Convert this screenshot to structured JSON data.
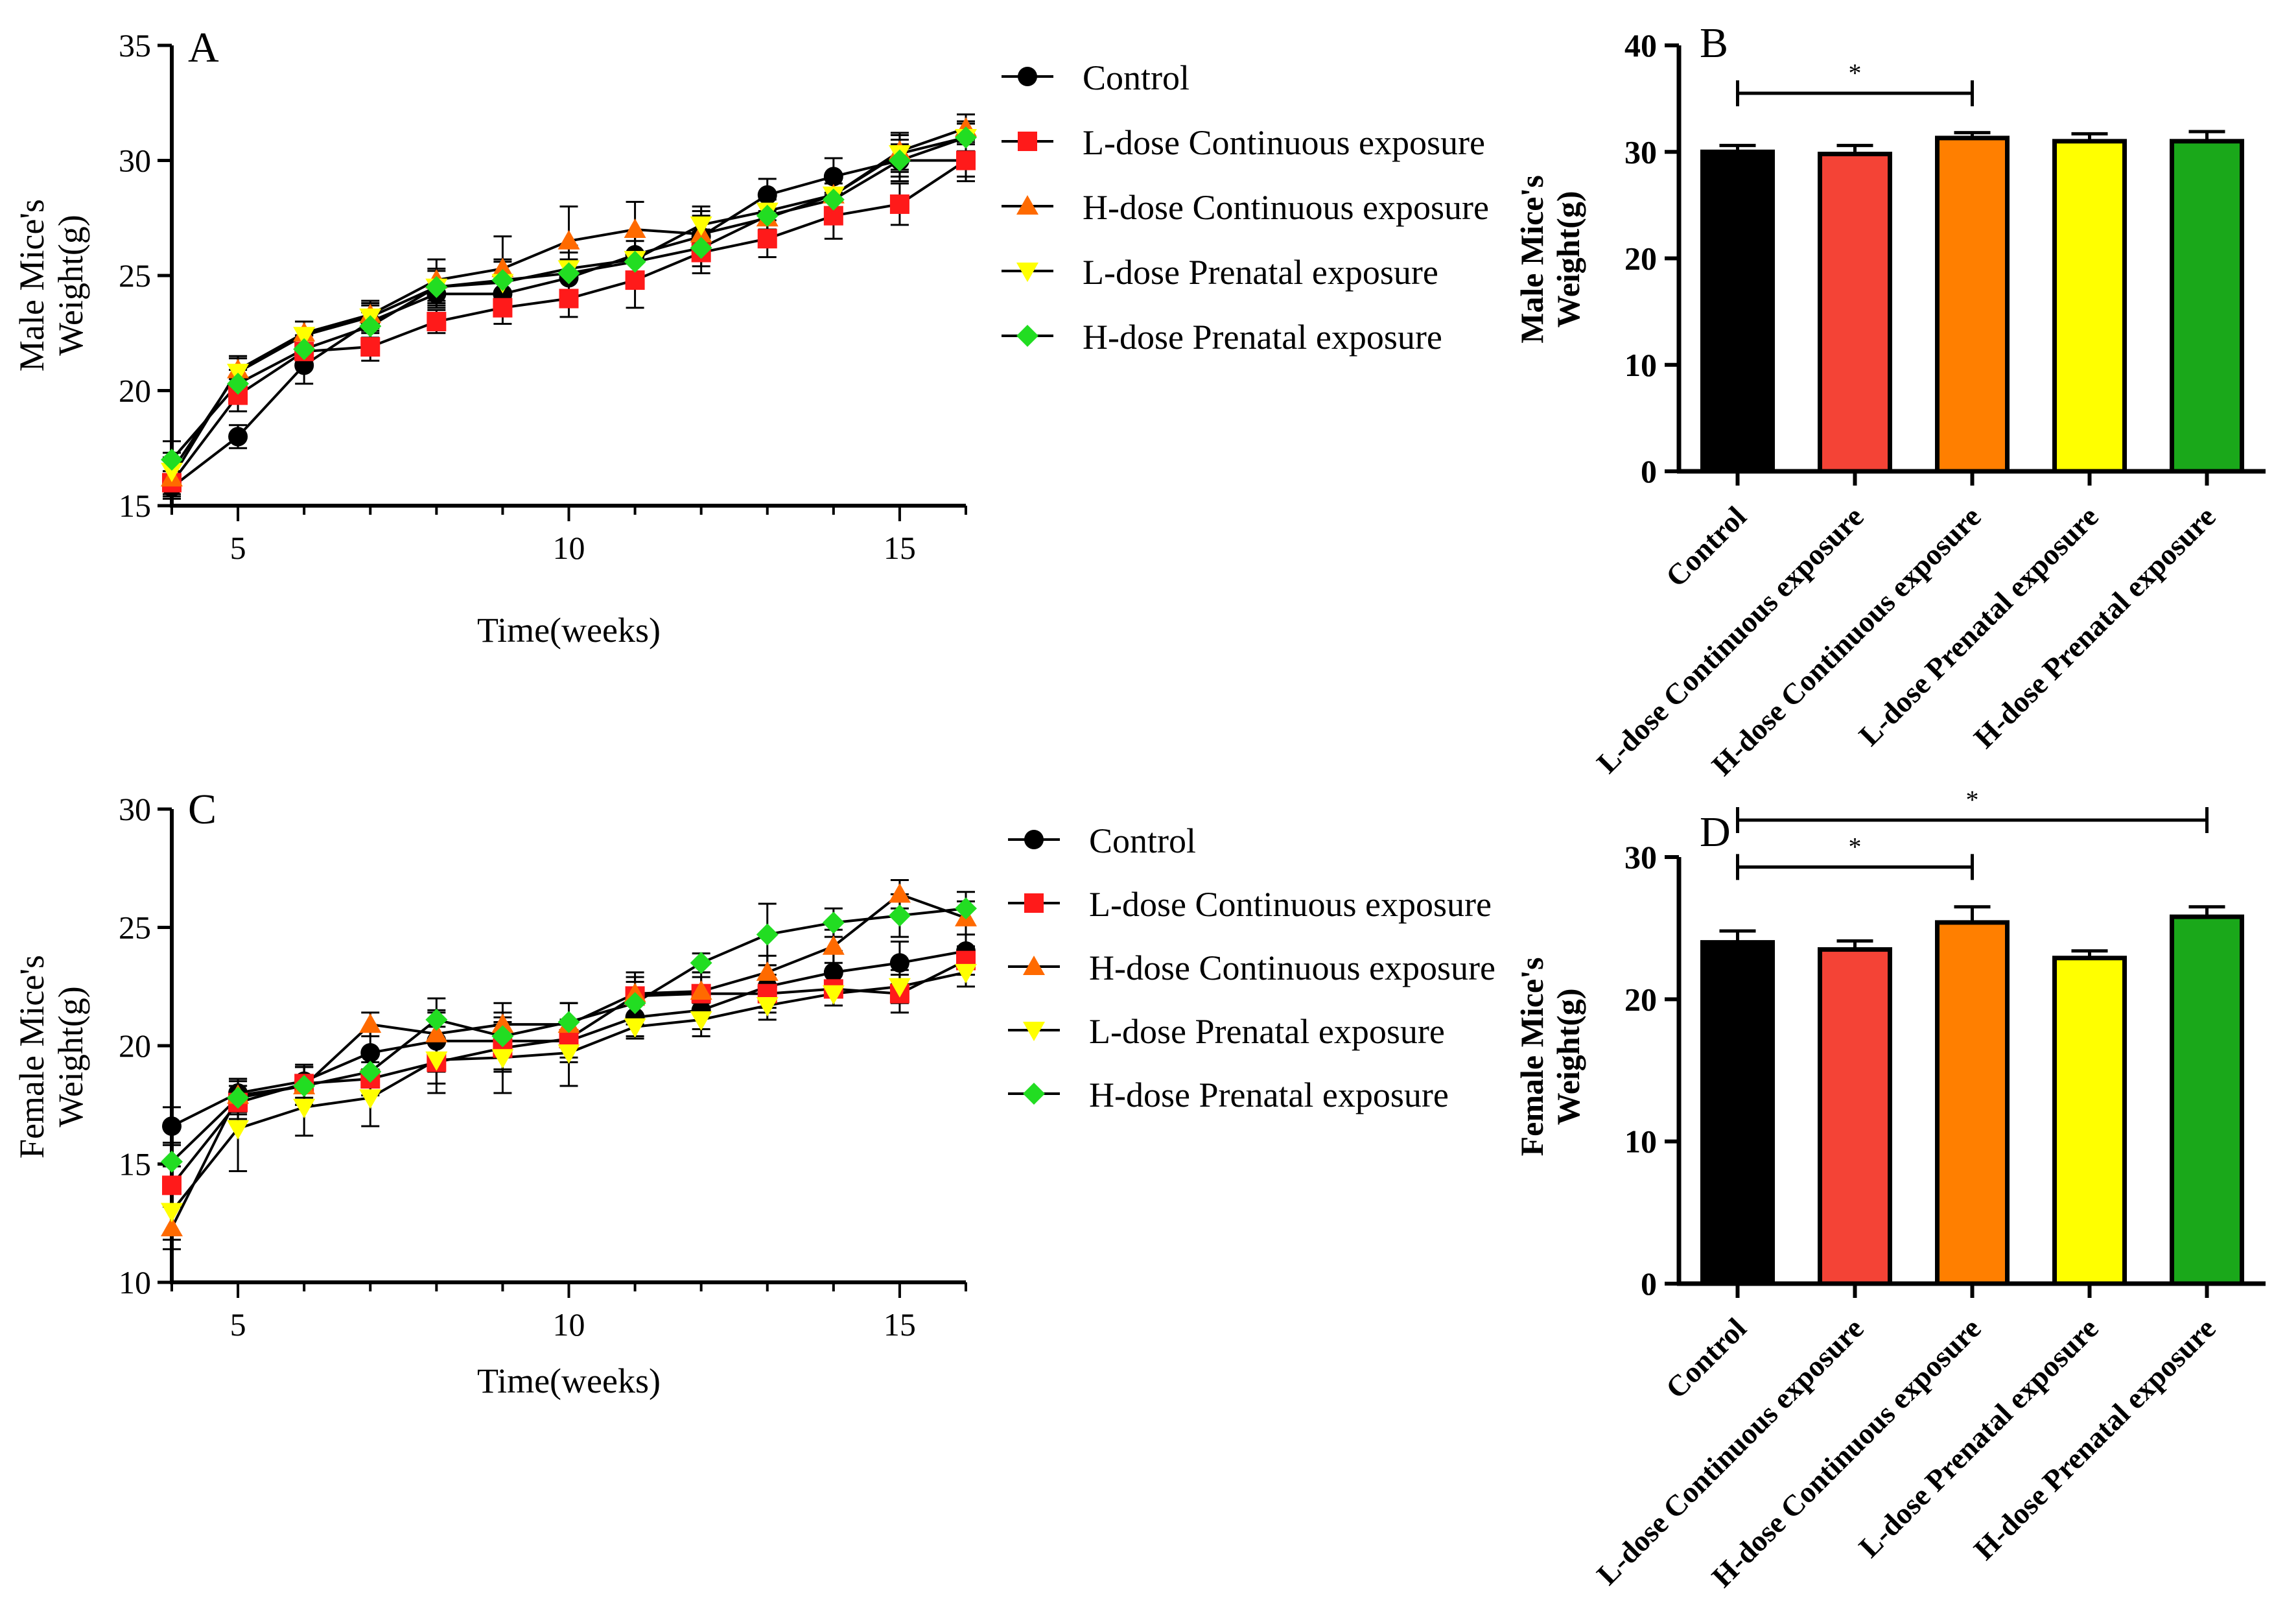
{
  "colors": {
    "control": "#000000",
    "l_cont": "#ff1a1a",
    "h_cont": "#ff6a00",
    "l_pren": "#ffff00",
    "h_pren": "#22dd22",
    "bar_control": "#000000",
    "bar_l_cont": "#f44336",
    "bar_h_cont": "#ff7f00",
    "bar_l_pren": "#ffff00",
    "bar_h_pren": "#1aa81a"
  },
  "chart_data": [
    {
      "id": "A",
      "panel_label": "A",
      "type": "line",
      "title": "",
      "xlabel": "Time(weeks)",
      "ylabel": [
        "Male Mice's",
        "Weight(g)"
      ],
      "xlim": [
        4,
        16
      ],
      "ylim": [
        15,
        35
      ],
      "xticks": [
        5,
        10,
        15
      ],
      "yticks": [
        15,
        20,
        25,
        30,
        35
      ],
      "legend": [
        "Control",
        "L-dose Continuous exposure",
        "H-dose Continuous exposure",
        "L-dose Prenatal exposure",
        "H-dose Prenatal exposure"
      ],
      "legend_position": "right",
      "x": [
        4,
        5,
        6,
        7,
        8,
        9,
        10,
        11,
        12,
        13,
        14,
        15,
        16
      ],
      "series": [
        {
          "name": "Control",
          "color_key": "control",
          "marker": "circle",
          "values": [
            15.8,
            18.0,
            21.1,
            23.0,
            24.2,
            24.2,
            24.9,
            25.9,
            26.7,
            28.5,
            29.3,
            30.0,
            30.0
          ],
          "errors": [
            0.4,
            0.5,
            0.8,
            0.7,
            0.6,
            0.7,
            0.8,
            0.8,
            0.9,
            0.7,
            0.8,
            0.9,
            0.9
          ]
        },
        {
          "name": "L-dose Continuous exposure",
          "color_key": "l_cont",
          "marker": "square",
          "values": [
            16.0,
            19.8,
            21.7,
            21.9,
            23.0,
            23.6,
            24.0,
            24.8,
            26.0,
            26.6,
            27.6,
            28.1,
            30.0
          ],
          "errors": [
            0.5,
            0.7,
            0.7,
            0.6,
            0.5,
            0.7,
            0.8,
            1.2,
            0.9,
            0.8,
            1.0,
            0.9,
            0.7
          ]
        },
        {
          "name": "H-dose Continuous exposure",
          "color_key": "h_cont",
          "marker": "triangle-up",
          "values": [
            16.2,
            20.9,
            22.5,
            23.3,
            24.8,
            25.3,
            26.5,
            27.0,
            26.8,
            27.5,
            28.5,
            30.4,
            31.4
          ],
          "errors": [
            0.9,
            0.6,
            0.5,
            0.6,
            0.9,
            1.4,
            1.5,
            1.2,
            1.0,
            0.9,
            0.8,
            0.8,
            0.6
          ]
        },
        {
          "name": "L-dose Prenatal exposure",
          "color_key": "l_pren",
          "marker": "triangle-down",
          "values": [
            16.5,
            20.8,
            22.4,
            23.2,
            24.5,
            24.7,
            25.3,
            25.7,
            27.2,
            27.8,
            28.5,
            30.3,
            31.0
          ],
          "errors": [
            0.8,
            0.6,
            0.6,
            0.6,
            0.8,
            1.0,
            1.0,
            1.0,
            0.8,
            0.8,
            0.9,
            0.8,
            0.7
          ]
        },
        {
          "name": "H-dose Prenatal exposure",
          "color_key": "h_pren",
          "marker": "diamond",
          "values": [
            17.0,
            20.3,
            21.8,
            22.8,
            24.5,
            24.8,
            25.1,
            25.6,
            26.2,
            27.6,
            28.3,
            30.0,
            31.0
          ],
          "errors": [
            0.8,
            0.6,
            0.6,
            0.6,
            0.7,
            0.8,
            0.9,
            0.9,
            0.8,
            0.7,
            0.7,
            0.7,
            0.6
          ]
        }
      ]
    },
    {
      "id": "B",
      "panel_label": "B",
      "type": "bar",
      "title": "",
      "xlabel": "",
      "ylabel": [
        "Male Mice's",
        "Weight(g)"
      ],
      "ylim": [
        0,
        40
      ],
      "yticks": [
        0,
        10,
        20,
        30,
        40
      ],
      "categories": [
        "Control",
        "L-dose Continuous exposure",
        "H-dose Continuous exposure",
        "L-dose Prenatal exposure",
        "H-dose Prenatal exposure"
      ],
      "values": [
        30.0,
        29.8,
        31.3,
        31.0,
        31.0
      ],
      "errors": [
        0.6,
        0.8,
        0.5,
        0.7,
        0.9
      ],
      "color_keys": [
        "bar_control",
        "bar_l_cont",
        "bar_h_cont",
        "bar_l_pren",
        "bar_h_pren"
      ],
      "significance": [
        {
          "from": 0,
          "to": 2,
          "label": "*",
          "y": 35.5
        }
      ]
    },
    {
      "id": "C",
      "panel_label": "C",
      "type": "line",
      "title": "",
      "xlabel": "Time(weeks)",
      "ylabel": [
        "Female Mice's",
        "Weight(g)"
      ],
      "xlim": [
        4,
        16
      ],
      "ylim": [
        10,
        30
      ],
      "xticks": [
        5,
        10,
        15
      ],
      "yticks": [
        10,
        15,
        20,
        25,
        30
      ],
      "legend": [
        "Control",
        "L-dose Continuous exposure",
        "H-dose Continuous exposure",
        "L-dose Prenatal exposure",
        "H-dose Prenatal exposure"
      ],
      "legend_position": "right",
      "x": [
        4,
        5,
        6,
        7,
        8,
        9,
        10,
        11,
        12,
        13,
        14,
        15,
        16
      ],
      "series": [
        {
          "name": "Control",
          "color_key": "control",
          "marker": "circle",
          "values": [
            16.6,
            18.0,
            18.5,
            19.7,
            20.2,
            20.2,
            20.2,
            21.2,
            21.5,
            22.5,
            23.1,
            23.5,
            24.0
          ],
          "errors": [
            0.8,
            0.6,
            0.7,
            0.9,
            1.3,
            1.2,
            0.9,
            0.8,
            0.8,
            0.9,
            0.9,
            0.9,
            0.7
          ]
        },
        {
          "name": "L-dose Continuous exposure",
          "color_key": "l_cont",
          "marker": "square",
          "values": [
            14.1,
            17.6,
            18.4,
            18.6,
            19.3,
            19.9,
            20.3,
            22.1,
            22.2,
            22.2,
            22.4,
            22.2,
            23.6
          ],
          "errors": [
            0.8,
            0.7,
            0.7,
            0.7,
            0.9,
            1.0,
            0.8,
            0.8,
            0.7,
            0.8,
            0.7,
            0.8,
            0.6
          ]
        },
        {
          "name": "H-dose Continuous exposure",
          "color_key": "h_cont",
          "marker": "triangle-up",
          "values": [
            12.3,
            17.9,
            18.3,
            20.9,
            20.5,
            20.9,
            20.9,
            22.2,
            22.3,
            23.1,
            24.2,
            26.4,
            25.4
          ],
          "errors": [
            0.9,
            0.7,
            0.8,
            0.5,
            0.9,
            0.9,
            0.9,
            0.9,
            0.8,
            0.7,
            0.7,
            0.6,
            0.7
          ]
        },
        {
          "name": "L-dose Prenatal exposure",
          "color_key": "l_pren",
          "marker": "triangle-down",
          "values": [
            13.0,
            16.5,
            17.4,
            17.8,
            19.4,
            19.5,
            19.7,
            20.8,
            21.1,
            21.7,
            22.2,
            22.5,
            23.1
          ],
          "errors": [
            1.2,
            1.8,
            1.2,
            1.2,
            1.4,
            1.5,
            1.4,
            0.5,
            0.7,
            0.6,
            0.5,
            0.7,
            0.6
          ]
        },
        {
          "name": "H-dose Prenatal exposure",
          "color_key": "h_pren",
          "marker": "diamond",
          "values": [
            15.1,
            17.8,
            18.3,
            18.9,
            21.1,
            20.4,
            21.0,
            21.8,
            23.5,
            24.7,
            25.2,
            25.5,
            25.8
          ],
          "errors": [
            0.8,
            0.7,
            0.8,
            0.8,
            0.9,
            0.8,
            0.8,
            0.9,
            0.4,
            1.3,
            0.6,
            0.9,
            0.7
          ]
        }
      ]
    },
    {
      "id": "D",
      "panel_label": "D",
      "type": "bar",
      "title": "",
      "xlabel": "",
      "ylabel": [
        "Female Mice's",
        "Weight(g)"
      ],
      "ylim": [
        0,
        30
      ],
      "yticks": [
        0,
        10,
        20,
        30
      ],
      "categories": [
        "Control",
        "L-dose Continuous exposure",
        "H-dose Continuous exposure",
        "L-dose Prenatal exposure",
        "H-dose Prenatal exposure"
      ],
      "values": [
        24.0,
        23.5,
        25.4,
        22.9,
        25.8
      ],
      "errors": [
        0.8,
        0.6,
        1.1,
        0.5,
        0.7
      ],
      "color_keys": [
        "bar_control",
        "bar_l_cont",
        "bar_h_cont",
        "bar_l_pren",
        "bar_h_pren"
      ],
      "significance": [
        {
          "from": 0,
          "to": 2,
          "label": "*",
          "y": 29.3
        },
        {
          "from": 0,
          "to": 4,
          "label": "*",
          "y": 32.6
        }
      ]
    }
  ]
}
